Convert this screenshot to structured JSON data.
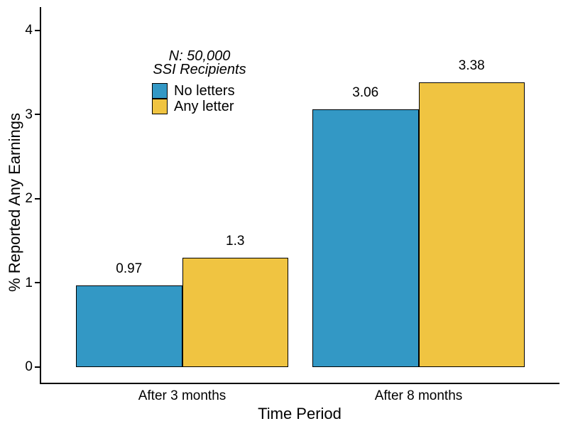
{
  "chart_data": {
    "type": "bar",
    "title": "",
    "xlabel": "Time Period",
    "ylabel": "% Reported Any Earnings",
    "categories": [
      "After 3 months",
      "After 8 months"
    ],
    "series": [
      {
        "name": "No letters",
        "color": "#3398C5",
        "values": [
          0.97,
          3.06
        ],
        "value_labels": [
          "0.97",
          "3.06"
        ]
      },
      {
        "name": "Any letter",
        "color": "#F0C441",
        "values": [
          1.3,
          3.38
        ],
        "value_labels": [
          "1.3",
          "3.38"
        ]
      }
    ],
    "yticks": [
      "0",
      "1",
      "2",
      "3",
      "4"
    ],
    "ylim": [
      -0.2,
      4.27
    ],
    "grid": false,
    "legend": {
      "position": "inside-top-left",
      "title_lines": [
        "N: 50,000",
        "SSI Recipients"
      ]
    },
    "axis_color": "#000000",
    "text_color": "#000000",
    "background": "#FFFFFF"
  }
}
